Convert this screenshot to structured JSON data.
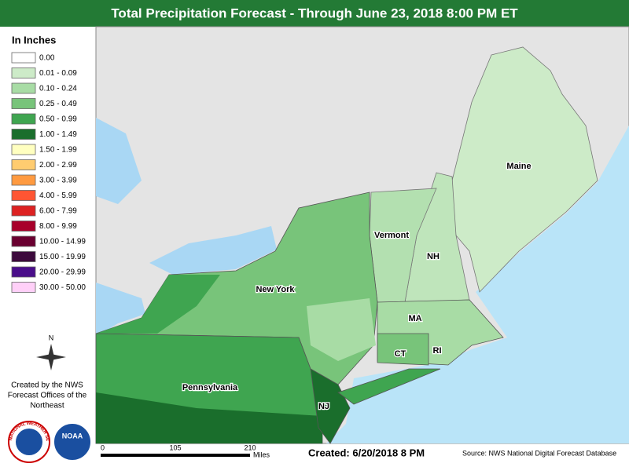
{
  "header": {
    "title": "Total Precipitation Forecast - Through June 23, 2018 8:00 PM ET"
  },
  "legend": {
    "title": "In Inches",
    "items": [
      {
        "label": "0.00",
        "color": "#ffffff"
      },
      {
        "label": "0.01 - 0.09",
        "color": "#cdebc8"
      },
      {
        "label": "0.10 - 0.24",
        "color": "#a8dca5"
      },
      {
        "label": "0.25 - 0.49",
        "color": "#78c47a"
      },
      {
        "label": "0.50 - 0.99",
        "color": "#3fa550"
      },
      {
        "label": "1.00 - 1.49",
        "color": "#1a6e2c"
      },
      {
        "label": "1.50 - 1.99",
        "color": "#ffffc0"
      },
      {
        "label": "2.00 - 2.99",
        "color": "#ffcc70"
      },
      {
        "label": "3.00 - 3.99",
        "color": "#ff9a40"
      },
      {
        "label": "4.00 - 5.99",
        "color": "#ff5533"
      },
      {
        "label": "6.00 - 7.99",
        "color": "#dd2222"
      },
      {
        "label": "8.00 - 9.99",
        "color": "#a8002a"
      },
      {
        "label": "10.00 - 14.99",
        "color": "#6a0030"
      },
      {
        "label": "15.00 - 19.99",
        "color": "#3c0a3c"
      },
      {
        "label": "20.00 - 29.99",
        "color": "#4a0e8a"
      },
      {
        "label": "30.00 - 50.00",
        "color": "#ffd0f8"
      }
    ]
  },
  "map_labels": [
    "Maine",
    "Vermont",
    "NH",
    "New York",
    "MA",
    "CT",
    "RI",
    "Pennsylvania",
    "NJ"
  ],
  "compass": "N",
  "credit": [
    "Created by the NWS",
    "Forecast Offices of the",
    "Northeast"
  ],
  "logos": {
    "nws": "NATIONAL WEATHER SERVICE",
    "noaa": "NOAA"
  },
  "scale": {
    "ticks": [
      "0",
      "105",
      "210"
    ],
    "unit": "Miles"
  },
  "footer": {
    "created": "Created: 6/20/2018 8 PM",
    "source": "Source: NWS National Digital Forecast Database"
  }
}
